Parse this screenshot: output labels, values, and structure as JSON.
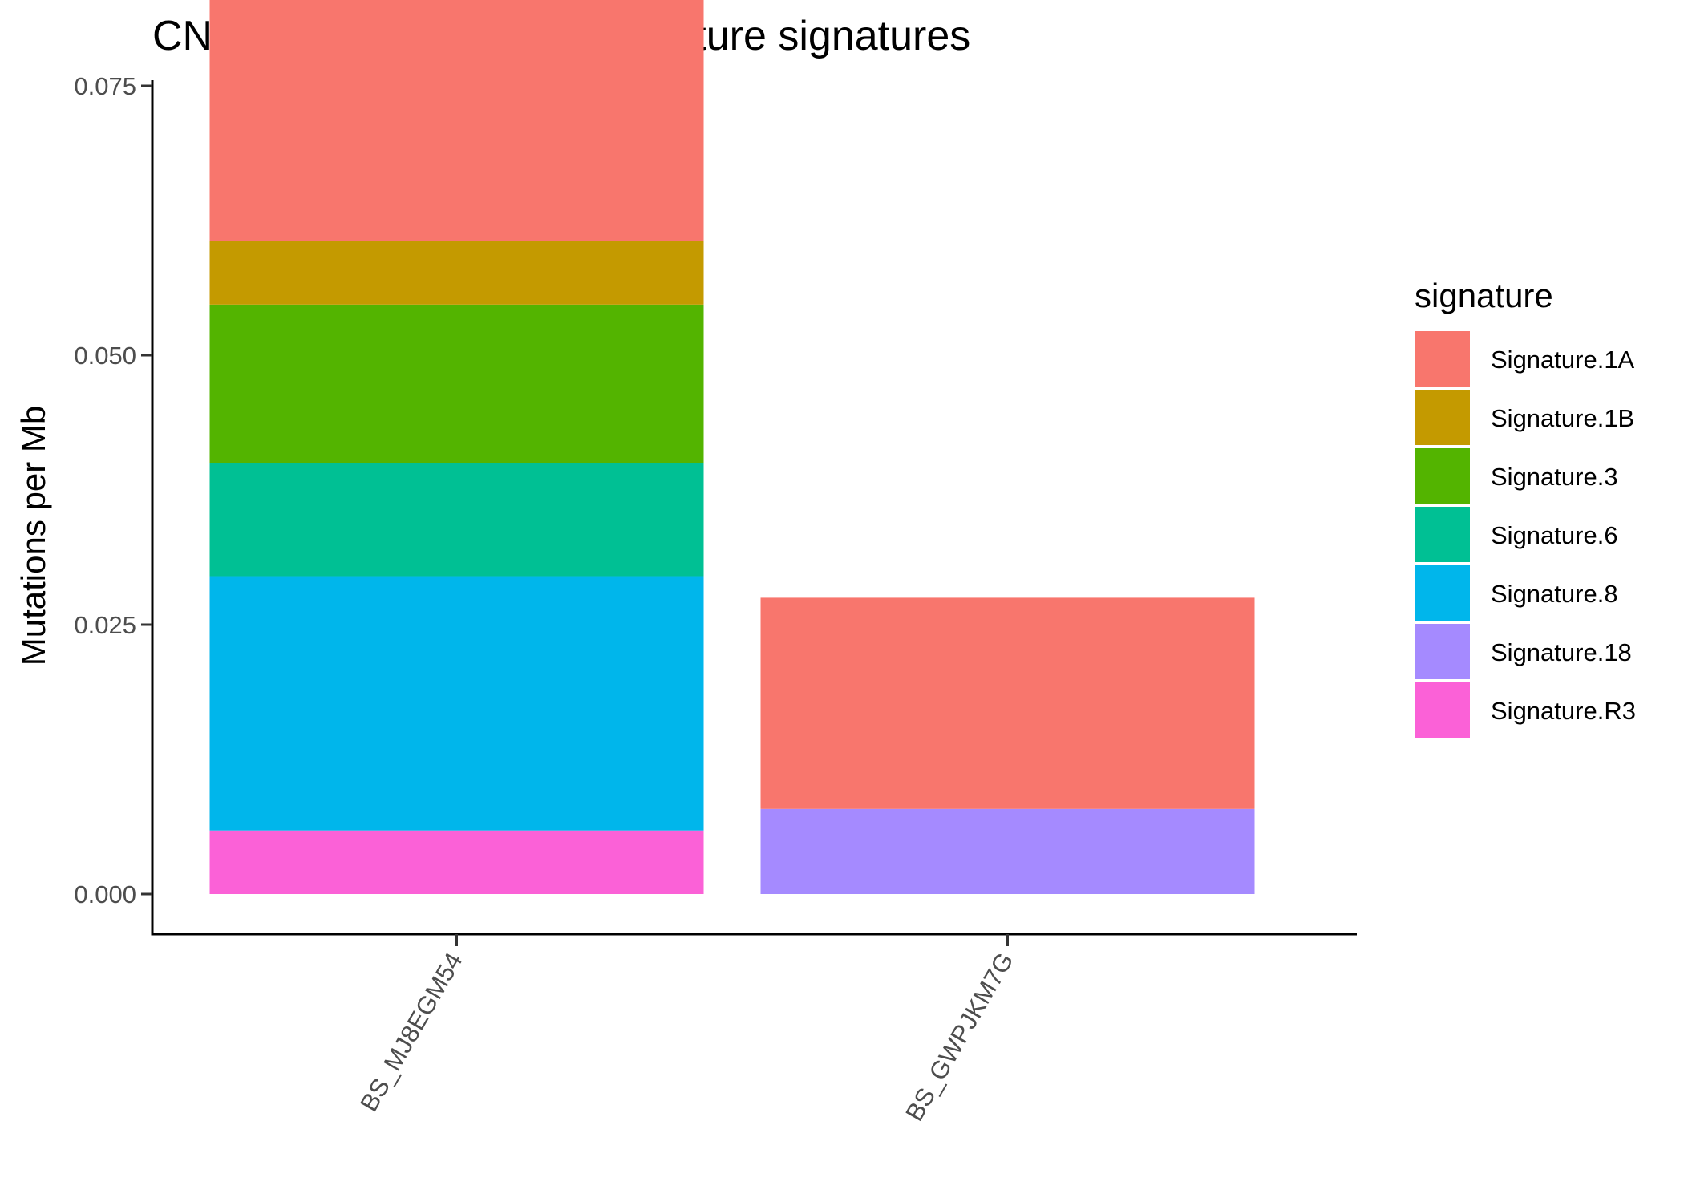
{
  "chart_data": {
    "type": "bar",
    "stacked": true,
    "title": "CNS Rhabdomyosarcoma nature signatures",
    "xlabel": "",
    "ylabel": "Mutations per Mb",
    "ylim": [
      0,
      0.09
    ],
    "yticks": [
      "0.000",
      "0.025",
      "0.050",
      "0.075"
    ],
    "ytick_values": [
      0,
      0.025,
      0.05,
      0.075
    ],
    "categories": [
      "BS_MJ8EGM54",
      "BS_GWPJKM7G"
    ],
    "legend_title": "signature",
    "legend_position": "right",
    "grid": false,
    "series": [
      {
        "name": "Signature.1A",
        "color": "#F8766D",
        "values": [
          0.0294,
          0.0196
        ]
      },
      {
        "name": "Signature.1B",
        "color": "#C49A00",
        "values": [
          0.0059,
          0
        ]
      },
      {
        "name": "Signature.3",
        "color": "#53B400",
        "values": [
          0.0147,
          0
        ]
      },
      {
        "name": "Signature.6",
        "color": "#00C094",
        "values": [
          0.0105,
          0
        ]
      },
      {
        "name": "Signature.8",
        "color": "#00B6EB",
        "values": [
          0.0236,
          0
        ]
      },
      {
        "name": "Signature.18",
        "color": "#A58AFF",
        "values": [
          0,
          0.0079
        ]
      },
      {
        "name": "Signature.R3",
        "color": "#FB61D7",
        "values": [
          0.0059,
          0
        ]
      }
    ]
  }
}
